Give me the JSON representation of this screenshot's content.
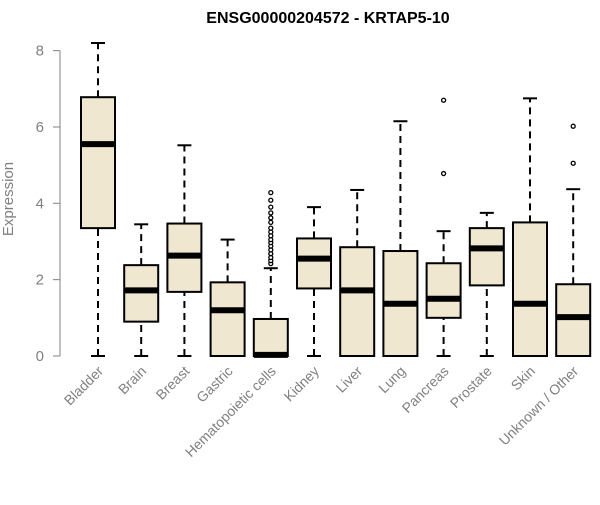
{
  "chart_data": {
    "type": "box",
    "title": "ENSG00000204572 - KRTAP5-10",
    "xlabel": "",
    "ylabel": "Expression",
    "ylim": [
      0,
      8.3
    ],
    "yticks": [
      0,
      2,
      4,
      6,
      8
    ],
    "grid": false,
    "box_color": "#efe7cf",
    "line_color": "#000000",
    "categories": [
      "Bladder",
      "Brain",
      "Breast",
      "Gastric",
      "Hematopoietic cells",
      "Kidney",
      "Liver",
      "Lung",
      "Pancreas",
      "Prostate",
      "Skin",
      "Unknown / Other"
    ],
    "boxes": [
      {
        "min": 0,
        "q1": 3.35,
        "median": 5.55,
        "q3": 6.78,
        "max": 8.2,
        "outliers": []
      },
      {
        "min": 0,
        "q1": 0.9,
        "median": 1.72,
        "q3": 2.38,
        "max": 3.45,
        "outliers": []
      },
      {
        "min": 0,
        "q1": 1.68,
        "median": 2.63,
        "q3": 3.47,
        "max": 5.52,
        "outliers": []
      },
      {
        "min": 0,
        "q1": 0,
        "median": 1.2,
        "q3": 1.93,
        "max": 3.05,
        "outliers": []
      },
      {
        "min": 0,
        "q1": 0,
        "median": 0.03,
        "q3": 0.97,
        "max": 2.3,
        "outliers": [
          2.42,
          2.5,
          2.58,
          2.68,
          2.78,
          2.88,
          2.97,
          3.05,
          3.15,
          3.25,
          3.35,
          3.5,
          3.62,
          3.75,
          3.9,
          4.08,
          4.28
        ]
      },
      {
        "min": 0,
        "q1": 1.77,
        "median": 2.55,
        "q3": 3.08,
        "max": 3.9,
        "outliers": []
      },
      {
        "min": 0,
        "q1": 0,
        "median": 1.72,
        "q3": 2.85,
        "max": 4.35,
        "outliers": []
      },
      {
        "min": 0,
        "q1": 0,
        "median": 1.37,
        "q3": 2.75,
        "max": 6.15,
        "outliers": []
      },
      {
        "min": 0,
        "q1": 1.0,
        "median": 1.5,
        "q3": 2.43,
        "max": 3.27,
        "outliers": [
          4.78,
          6.7
        ]
      },
      {
        "min": 0,
        "q1": 1.85,
        "median": 2.82,
        "q3": 3.35,
        "max": 3.75,
        "outliers": []
      },
      {
        "min": 0,
        "q1": 0,
        "median": 1.37,
        "q3": 3.5,
        "max": 6.75,
        "outliers": []
      },
      {
        "min": 0,
        "q1": 0,
        "median": 1.02,
        "q3": 1.88,
        "max": 4.37,
        "outliers": [
          5.05,
          6.02
        ]
      }
    ]
  }
}
